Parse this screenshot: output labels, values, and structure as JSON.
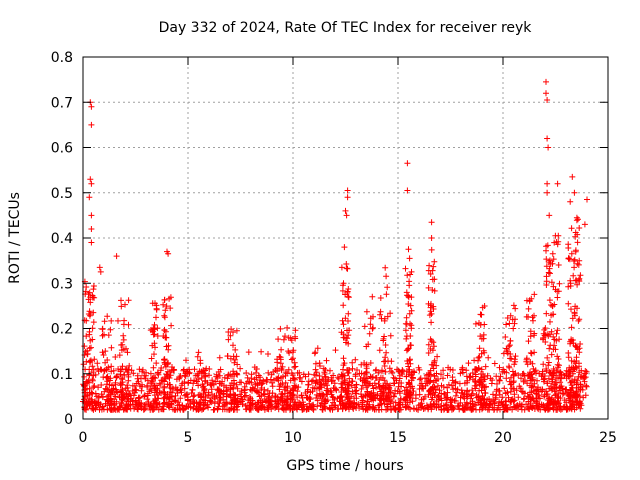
{
  "chart_data": {
    "type": "scatter",
    "title": "Day 332 of 2024, Rate Of TEC Index for receiver reyk",
    "xlabel": "GPS time / hours",
    "ylabel": "ROTI / TECUs",
    "xlim": [
      0,
      25
    ],
    "ylim": [
      0,
      0.8
    ],
    "xticks": [
      "0",
      "5",
      "10",
      "15",
      "20",
      "25"
    ],
    "yticks": [
      "0",
      "0.1",
      "0.2",
      "0.3",
      "0.4",
      "0.5",
      "0.6",
      "0.7",
      "0.8"
    ],
    "grid": true,
    "marker": "plus",
    "color": "#ff0000",
    "outliers": [
      {
        "x": 0.35,
        "y": 0.7
      },
      {
        "x": 0.4,
        "y": 0.69
      },
      {
        "x": 0.4,
        "y": 0.65
      },
      {
        "x": 0.35,
        "y": 0.53
      },
      {
        "x": 0.4,
        "y": 0.52
      },
      {
        "x": 0.3,
        "y": 0.49
      },
      {
        "x": 0.4,
        "y": 0.45
      },
      {
        "x": 0.4,
        "y": 0.42
      },
      {
        "x": 0.4,
        "y": 0.39
      },
      {
        "x": 0.8,
        "y": 0.335
      },
      {
        "x": 0.85,
        "y": 0.325
      },
      {
        "x": 1.6,
        "y": 0.36
      },
      {
        "x": 4.0,
        "y": 0.37
      },
      {
        "x": 4.05,
        "y": 0.365
      },
      {
        "x": 12.6,
        "y": 0.505
      },
      {
        "x": 12.6,
        "y": 0.49
      },
      {
        "x": 12.5,
        "y": 0.46
      },
      {
        "x": 12.55,
        "y": 0.45
      },
      {
        "x": 12.45,
        "y": 0.38
      },
      {
        "x": 15.45,
        "y": 0.565
      },
      {
        "x": 15.45,
        "y": 0.505
      },
      {
        "x": 15.5,
        "y": 0.375
      },
      {
        "x": 15.55,
        "y": 0.355
      },
      {
        "x": 16.6,
        "y": 0.435
      },
      {
        "x": 16.6,
        "y": 0.4
      },
      {
        "x": 22.05,
        "y": 0.745
      },
      {
        "x": 22.05,
        "y": 0.72
      },
      {
        "x": 22.1,
        "y": 0.705
      },
      {
        "x": 22.1,
        "y": 0.62
      },
      {
        "x": 22.15,
        "y": 0.6
      },
      {
        "x": 22.1,
        "y": 0.52
      },
      {
        "x": 22.1,
        "y": 0.5
      },
      {
        "x": 22.2,
        "y": 0.45
      },
      {
        "x": 22.6,
        "y": 0.52
      },
      {
        "x": 23.3,
        "y": 0.535
      },
      {
        "x": 23.4,
        "y": 0.5
      },
      {
        "x": 23.2,
        "y": 0.48
      },
      {
        "x": 24.0,
        "y": 0.485
      },
      {
        "x": 23.9,
        "y": 0.43
      }
    ],
    "bursts": [
      {
        "x": 0.3,
        "width": 0.5,
        "peak": 0.32,
        "count": 70
      },
      {
        "x": 1.3,
        "width": 0.8,
        "peak": 0.23,
        "count": 45
      },
      {
        "x": 2.0,
        "width": 0.4,
        "peak": 0.28,
        "count": 30
      },
      {
        "x": 3.4,
        "width": 0.4,
        "peak": 0.26,
        "count": 35
      },
      {
        "x": 4.0,
        "width": 0.4,
        "peak": 0.27,
        "count": 40
      },
      {
        "x": 5.7,
        "width": 0.6,
        "peak": 0.15,
        "count": 25
      },
      {
        "x": 7.1,
        "width": 0.5,
        "peak": 0.2,
        "count": 30
      },
      {
        "x": 9.4,
        "width": 0.5,
        "peak": 0.22,
        "count": 30
      },
      {
        "x": 9.9,
        "width": 0.5,
        "peak": 0.21,
        "count": 30
      },
      {
        "x": 11.3,
        "width": 0.6,
        "peak": 0.16,
        "count": 25
      },
      {
        "x": 12.5,
        "width": 0.4,
        "peak": 0.35,
        "count": 60
      },
      {
        "x": 13.6,
        "width": 0.5,
        "peak": 0.28,
        "count": 35
      },
      {
        "x": 14.4,
        "width": 0.6,
        "peak": 0.34,
        "count": 45
      },
      {
        "x": 15.5,
        "width": 0.3,
        "peak": 0.34,
        "count": 55
      },
      {
        "x": 16.6,
        "width": 0.3,
        "peak": 0.38,
        "count": 50
      },
      {
        "x": 18.9,
        "width": 0.5,
        "peak": 0.25,
        "count": 35
      },
      {
        "x": 20.3,
        "width": 0.6,
        "peak": 0.26,
        "count": 40
      },
      {
        "x": 21.3,
        "width": 0.4,
        "peak": 0.3,
        "count": 35
      },
      {
        "x": 22.3,
        "width": 0.8,
        "peak": 0.42,
        "count": 110
      },
      {
        "x": 23.4,
        "width": 0.6,
        "peak": 0.45,
        "count": 110
      }
    ],
    "baseline": {
      "x_start": 0,
      "x_end": 24,
      "low": 0.02,
      "typical_high": 0.11,
      "density_per_hour": 75
    }
  }
}
